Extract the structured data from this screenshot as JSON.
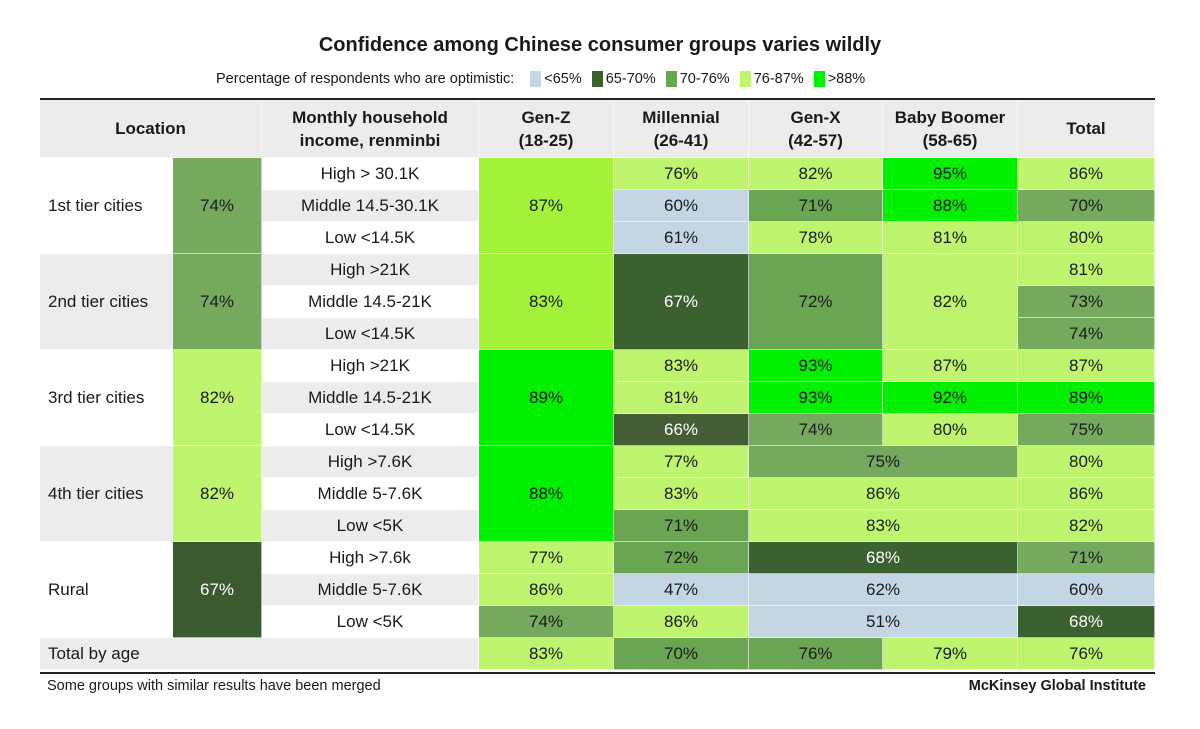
{
  "title": "Confidence among Chinese consumer groups varies wildly",
  "legend": {
    "label": "Percentage of respondents who are optimistic:",
    "items": [
      {
        "label": "<65%",
        "color": "#c4d5e4"
      },
      {
        "label": "65-70%",
        "color": "#3c6130"
      },
      {
        "label": "70-76%",
        "color": "#6aa552"
      },
      {
        "label": "76-87%",
        "color": "#bff56e"
      },
      {
        "label": ">88%",
        "color": "#00f000"
      }
    ]
  },
  "footer": {
    "note": "Some groups with similar results have been merged",
    "source": "McKinsey Global Institute"
  },
  "chart_data": {
    "type": "table",
    "title": "Confidence among Chinese consumer groups varies wildly",
    "headers": {
      "location": "Location",
      "income": "Monthly household income, renminbi",
      "genz": "Gen-Z (18-25)",
      "millennial": "Millennial (26-41)",
      "genx": "Gen-X (42-57)",
      "boomer": "Baby Boomer (58-65)",
      "total": "Total"
    },
    "header_lines": {
      "income": [
        "Monthly household",
        "income, renminbi"
      ],
      "genz": [
        "Gen-Z",
        "(18-25)"
      ],
      "millennial": [
        "Millennial",
        "(26-41)"
      ],
      "genx": [
        "Gen-X",
        "(42-57)"
      ],
      "boomer": [
        "Baby Boomer",
        "(58-65)"
      ]
    },
    "locations": [
      {
        "name": "1st tier cities",
        "value": "74%",
        "color": "#74a95e"
      },
      {
        "name": "2nd tier cities",
        "value": "74%",
        "color": "#74a95e"
      },
      {
        "name": "3rd tier cities",
        "value": "82%",
        "color": "#bff56e"
      },
      {
        "name": "4th tier cities",
        "value": "82%",
        "color": "#bff56e"
      },
      {
        "name": "Rural",
        "value": "67%",
        "color": "#3c5a30"
      }
    ],
    "incomes": [
      "High > 30.1K",
      "Middle 14.5-30.1K",
      "Low <14.5K",
      "High >21K",
      "Middle 14.5-21K",
      "Low <14.5K",
      "High >21K",
      "Middle 14.5-21K",
      "Low <14.5K",
      "High >7.6K",
      "Middle 5-7.6K",
      "Low <5K",
      "High >7.6k",
      "Middle 5-7.6K",
      "Low <5K"
    ],
    "cells": [
      {
        "r": 0,
        "rs": 3,
        "c": 0,
        "cs": 1,
        "v": "87%",
        "color": "#a4f23a"
      },
      {
        "r": 3,
        "rs": 3,
        "c": 0,
        "cs": 1,
        "v": "83%",
        "color": "#a4f23a"
      },
      {
        "r": 6,
        "rs": 3,
        "c": 0,
        "cs": 1,
        "v": "89%",
        "color": "#00f000"
      },
      {
        "r": 9,
        "rs": 3,
        "c": 0,
        "cs": 1,
        "v": "88%",
        "color": "#00f000"
      },
      {
        "r": 12,
        "rs": 1,
        "c": 0,
        "cs": 1,
        "v": "77%",
        "color": "#bff56e"
      },
      {
        "r": 13,
        "rs": 1,
        "c": 0,
        "cs": 1,
        "v": "86%",
        "color": "#bff56e"
      },
      {
        "r": 14,
        "rs": 1,
        "c": 0,
        "cs": 1,
        "v": "74%",
        "color": "#74a95e"
      },
      {
        "r": 0,
        "rs": 1,
        "c": 1,
        "cs": 1,
        "v": "76%",
        "color": "#bff56e"
      },
      {
        "r": 1,
        "rs": 1,
        "c": 1,
        "cs": 1,
        "v": "60%",
        "color": "#c4d5e4"
      },
      {
        "r": 2,
        "rs": 1,
        "c": 1,
        "cs": 1,
        "v": "61%",
        "color": "#c4d5e4"
      },
      {
        "r": 3,
        "rs": 3,
        "c": 1,
        "cs": 1,
        "v": "67%",
        "color": "#3c6130",
        "light": true
      },
      {
        "r": 6,
        "rs": 1,
        "c": 1,
        "cs": 1,
        "v": "83%",
        "color": "#bff56e"
      },
      {
        "r": 7,
        "rs": 1,
        "c": 1,
        "cs": 1,
        "v": "81%",
        "color": "#bff56e"
      },
      {
        "r": 8,
        "rs": 1,
        "c": 1,
        "cs": 1,
        "v": "66%",
        "color": "#465e36",
        "light": true
      },
      {
        "r": 9,
        "rs": 1,
        "c": 1,
        "cs": 1,
        "v": "77%",
        "color": "#bff56e"
      },
      {
        "r": 10,
        "rs": 1,
        "c": 1,
        "cs": 1,
        "v": "83%",
        "color": "#bff56e"
      },
      {
        "r": 11,
        "rs": 1,
        "c": 1,
        "cs": 1,
        "v": "71%",
        "color": "#6aa552"
      },
      {
        "r": 12,
        "rs": 1,
        "c": 1,
        "cs": 1,
        "v": "72%",
        "color": "#6aa552"
      },
      {
        "r": 13,
        "rs": 1,
        "c": 1,
        "cs": 1,
        "v": "47%",
        "color": "#c4d5e4"
      },
      {
        "r": 14,
        "rs": 1,
        "c": 1,
        "cs": 1,
        "v": "86%",
        "color": "#bff56e"
      },
      {
        "r": 0,
        "rs": 1,
        "c": 2,
        "cs": 1,
        "v": "82%",
        "color": "#bff56e"
      },
      {
        "r": 1,
        "rs": 1,
        "c": 2,
        "cs": 1,
        "v": "71%",
        "color": "#6aa552"
      },
      {
        "r": 2,
        "rs": 1,
        "c": 2,
        "cs": 1,
        "v": "78%",
        "color": "#bff56e"
      },
      {
        "r": 3,
        "rs": 3,
        "c": 2,
        "cs": 1,
        "v": "72%",
        "color": "#6aa552"
      },
      {
        "r": 6,
        "rs": 1,
        "c": 2,
        "cs": 1,
        "v": "93%",
        "color": "#00f000"
      },
      {
        "r": 7,
        "rs": 1,
        "c": 2,
        "cs": 1,
        "v": "93%",
        "color": "#00f000"
      },
      {
        "r": 8,
        "rs": 1,
        "c": 2,
        "cs": 1,
        "v": "74%",
        "color": "#74a95e"
      },
      {
        "r": 9,
        "rs": 1,
        "c": 2,
        "cs": 2,
        "v": "75%",
        "color": "#74a95e"
      },
      {
        "r": 10,
        "rs": 1,
        "c": 2,
        "cs": 2,
        "v": "86%",
        "color": "#bff56e"
      },
      {
        "r": 11,
        "rs": 1,
        "c": 2,
        "cs": 2,
        "v": "83%",
        "color": "#bff56e"
      },
      {
        "r": 12,
        "rs": 1,
        "c": 2,
        "cs": 2,
        "v": "68%",
        "color": "#3c6130",
        "light": true
      },
      {
        "r": 13,
        "rs": 1,
        "c": 2,
        "cs": 2,
        "v": "62%",
        "color": "#c4d5e4"
      },
      {
        "r": 14,
        "rs": 1,
        "c": 2,
        "cs": 2,
        "v": "51%",
        "color": "#c4d5e4"
      },
      {
        "r": 0,
        "rs": 1,
        "c": 3,
        "cs": 1,
        "v": "95%",
        "color": "#00f000"
      },
      {
        "r": 1,
        "rs": 1,
        "c": 3,
        "cs": 1,
        "v": "88%",
        "color": "#00f000"
      },
      {
        "r": 2,
        "rs": 1,
        "c": 3,
        "cs": 1,
        "v": "81%",
        "color": "#bff56e"
      },
      {
        "r": 3,
        "rs": 3,
        "c": 3,
        "cs": 1,
        "v": "82%",
        "color": "#bff56e"
      },
      {
        "r": 6,
        "rs": 1,
        "c": 3,
        "cs": 1,
        "v": "87%",
        "color": "#bff56e"
      },
      {
        "r": 7,
        "rs": 1,
        "c": 3,
        "cs": 1,
        "v": "92%",
        "color": "#00f000"
      },
      {
        "r": 8,
        "rs": 1,
        "c": 3,
        "cs": 1,
        "v": "80%",
        "color": "#bff56e"
      },
      {
        "r": 0,
        "rs": 1,
        "c": 4,
        "cs": 1,
        "v": "86%",
        "color": "#bff56e"
      },
      {
        "r": 1,
        "rs": 1,
        "c": 4,
        "cs": 1,
        "v": "70%",
        "color": "#74a95e"
      },
      {
        "r": 2,
        "rs": 1,
        "c": 4,
        "cs": 1,
        "v": "80%",
        "color": "#bff56e"
      },
      {
        "r": 3,
        "rs": 1,
        "c": 4,
        "cs": 1,
        "v": "81%",
        "color": "#bff56e"
      },
      {
        "r": 4,
        "rs": 1,
        "c": 4,
        "cs": 1,
        "v": "73%",
        "color": "#74a95e"
      },
      {
        "r": 5,
        "rs": 1,
        "c": 4,
        "cs": 1,
        "v": "74%",
        "color": "#74a95e"
      },
      {
        "r": 6,
        "rs": 1,
        "c": 4,
        "cs": 1,
        "v": "87%",
        "color": "#bff56e"
      },
      {
        "r": 7,
        "rs": 1,
        "c": 4,
        "cs": 1,
        "v": "89%",
        "color": "#00f000"
      },
      {
        "r": 8,
        "rs": 1,
        "c": 4,
        "cs": 1,
        "v": "75%",
        "color": "#74a95e"
      },
      {
        "r": 9,
        "rs": 1,
        "c": 4,
        "cs": 1,
        "v": "80%",
        "color": "#bff56e"
      },
      {
        "r": 10,
        "rs": 1,
        "c": 4,
        "cs": 1,
        "v": "86%",
        "color": "#bff56e"
      },
      {
        "r": 11,
        "rs": 1,
        "c": 4,
        "cs": 1,
        "v": "82%",
        "color": "#bff56e"
      },
      {
        "r": 12,
        "rs": 1,
        "c": 4,
        "cs": 1,
        "v": "71%",
        "color": "#74a95e"
      },
      {
        "r": 13,
        "rs": 1,
        "c": 4,
        "cs": 1,
        "v": "60%",
        "color": "#c4d5e4"
      },
      {
        "r": 14,
        "rs": 1,
        "c": 4,
        "cs": 1,
        "v": "68%",
        "color": "#3c6130",
        "light": true
      }
    ],
    "total_by_age": {
      "label": "Total  by age",
      "values": [
        {
          "v": "83%",
          "color": "#bff56e"
        },
        {
          "v": "70%",
          "color": "#6aa552"
        },
        {
          "v": "76%",
          "color": "#6aa552"
        },
        {
          "v": "79%",
          "color": "#bff56e"
        },
        {
          "v": "76%",
          "color": "#bff56e"
        }
      ]
    }
  }
}
